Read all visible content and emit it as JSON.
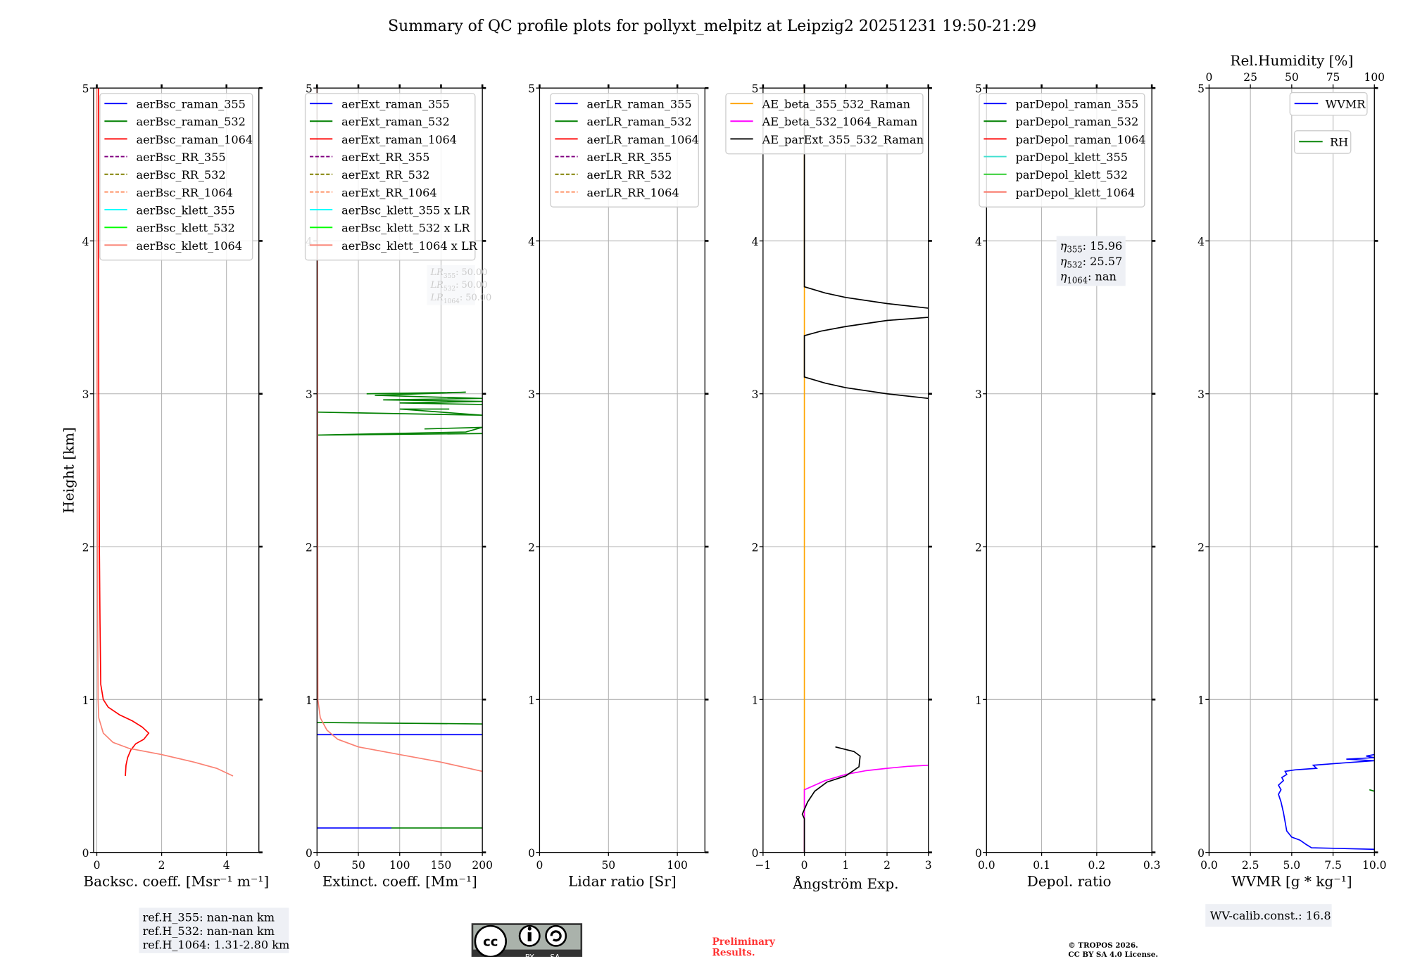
{
  "title": "Summary of QC profile plots for pollyxt_melpitz at Leipzig2 20251231 19:50-21:29",
  "ylabel": "Height [km]",
  "colors": {
    "grid": "#b0b0b0",
    "box": "#eef0f5",
    "preliminary": "#ff3333"
  },
  "chart_data": [
    {
      "type": "line",
      "xlabel": "Backsc. coeff. [Msr⁻¹ m⁻¹]",
      "xlim": [
        -0.1,
        5
      ],
      "ylim": [
        0,
        5
      ],
      "xticks": [
        0,
        2,
        4
      ],
      "xtick_labels": [
        "0",
        "2",
        "4"
      ],
      "yticks": [
        0,
        1,
        2,
        3,
        4,
        5
      ],
      "grid": true,
      "series": [
        {
          "name": "aerBsc_raman_355",
          "color": "#0000ff",
          "dash": false,
          "points": []
        },
        {
          "name": "aerBsc_raman_532",
          "color": "#008000",
          "dash": false,
          "points": []
        },
        {
          "name": "aerBsc_raman_1064",
          "color": "#ff0000",
          "dash": false,
          "points": [
            [
              0.05,
              5
            ],
            [
              0.06,
              3
            ],
            [
              0.08,
              2
            ],
            [
              0.1,
              1.5
            ],
            [
              0.12,
              1.1
            ],
            [
              0.2,
              1.0
            ],
            [
              0.35,
              0.95
            ],
            [
              0.7,
              0.9
            ],
            [
              1.1,
              0.86
            ],
            [
              1.4,
              0.82
            ],
            [
              1.6,
              0.78
            ],
            [
              1.45,
              0.74
            ],
            [
              1.2,
              0.71
            ],
            [
              1.05,
              0.67
            ],
            [
              0.95,
              0.62
            ],
            [
              0.9,
              0.57
            ],
            [
              0.88,
              0.5
            ]
          ]
        },
        {
          "name": "aerBsc_RR_355",
          "color": "#800080",
          "dash": true,
          "points": []
        },
        {
          "name": "aerBsc_RR_532",
          "color": "#808000",
          "dash": true,
          "points": []
        },
        {
          "name": "aerBsc_RR_1064",
          "color": "#ffa07a",
          "dash": true,
          "points": []
        },
        {
          "name": "aerBsc_klett_355",
          "color": "#00ffff",
          "dash": false,
          "points": []
        },
        {
          "name": "aerBsc_klett_532",
          "color": "#00ff00",
          "dash": false,
          "points": []
        },
        {
          "name": "aerBsc_klett_1064",
          "color": "#fa8072",
          "dash": false,
          "points": [
            [
              0.0,
              5
            ],
            [
              0.01,
              3
            ],
            [
              0.03,
              1.5
            ],
            [
              0.04,
              1.0
            ],
            [
              0.06,
              0.88
            ],
            [
              0.2,
              0.78
            ],
            [
              0.5,
              0.72
            ],
            [
              1.0,
              0.68
            ],
            [
              2.0,
              0.64
            ],
            [
              3.0,
              0.59
            ],
            [
              3.7,
              0.55
            ],
            [
              4.2,
              0.5
            ]
          ]
        }
      ],
      "annotation": [
        "ref.H_355: nan-nan km",
        "ref.H_532: nan-nan km",
        "ref.H_1064: 1.31-2.80 km"
      ]
    },
    {
      "type": "line",
      "xlabel": "Extinct. coeff. [Mm⁻¹]",
      "xlim": [
        0,
        200
      ],
      "ylim": [
        0,
        5
      ],
      "xticks": [
        0,
        50,
        100,
        150,
        200
      ],
      "xtick_labels": [
        "0",
        "50",
        "100",
        "150",
        "200"
      ],
      "yticks": [
        0,
        1,
        2,
        3,
        4,
        5
      ],
      "grid": true,
      "series": [
        {
          "name": "aerExt_raman_355",
          "color": "#0000ff",
          "dash": false,
          "points": [
            [
              0,
              0.77
            ],
            [
              200,
              0.77
            ],
            null,
            [
              0,
              0.16
            ],
            [
              90,
              0.16
            ]
          ]
        },
        {
          "name": "aerExt_raman_532",
          "color": "#008000",
          "dash": false,
          "points": [
            [
              0,
              0.85
            ],
            [
              200,
              0.84
            ],
            null,
            [
              90,
              0.16
            ],
            [
              200,
              0.16
            ],
            null,
            [
              60,
              3.0
            ],
            [
              180,
              3.01
            ],
            [
              70,
              2.99
            ],
            [
              200,
              2.97
            ],
            [
              80,
              2.96
            ],
            [
              200,
              2.95
            ],
            [
              100,
              2.94
            ],
            [
              200,
              2.93
            ],
            null,
            [
              0,
              2.88
            ],
            [
              200,
              2.86
            ],
            [
              100,
              2.9
            ],
            [
              160,
              2.9
            ],
            null,
            [
              130,
              2.77
            ],
            [
              200,
              2.78
            ],
            [
              180,
              2.75
            ],
            [
              0,
              2.73
            ],
            [
              200,
              2.74
            ]
          ]
        },
        {
          "name": "aerExt_raman_1064",
          "color": "#ff0000",
          "dash": false,
          "points": []
        },
        {
          "name": "aerExt_RR_355",
          "color": "#800080",
          "dash": true,
          "points": []
        },
        {
          "name": "aerExt_RR_532",
          "color": "#808000",
          "dash": true,
          "points": []
        },
        {
          "name": "aerExt_RR_1064",
          "color": "#ffa07a",
          "dash": true,
          "points": []
        },
        {
          "name": "aerBsc_klett_355 x LR",
          "color": "#00ffff",
          "dash": false,
          "points": []
        },
        {
          "name": "aerBsc_klett_532 x LR",
          "color": "#00ff00",
          "dash": false,
          "points": []
        },
        {
          "name": "aerBsc_klett_1064 x LR",
          "color": "#fa8072",
          "dash": false,
          "points": [
            [
              0,
              5
            ],
            [
              0.5,
              4
            ],
            [
              0.8,
              2
            ],
            [
              1,
              1.0
            ],
            [
              4,
              0.88
            ],
            [
              12,
              0.8
            ],
            [
              25,
              0.74
            ],
            [
              50,
              0.69
            ],
            [
              100,
              0.64
            ],
            [
              150,
              0.59
            ],
            [
              200,
              0.53
            ]
          ]
        }
      ],
      "annotation": [
        {
          "sym": "LR",
          "sub": "355",
          "val": ": 50.00"
        },
        {
          "sym": "LR",
          "sub": "532",
          "val": ": 50.00"
        },
        {
          "sym": "LR",
          "sub": "1064",
          "val": ": 50.00"
        }
      ]
    },
    {
      "type": "line",
      "xlabel": "Lidar ratio [Sr]",
      "xlim": [
        0,
        120
      ],
      "ylim": [
        0,
        5
      ],
      "xticks": [
        0,
        50,
        100
      ],
      "xtick_labels": [
        "0",
        "50",
        "100"
      ],
      "yticks": [
        0,
        1,
        2,
        3,
        4,
        5
      ],
      "grid": true,
      "series": [
        {
          "name": "aerLR_raman_355",
          "color": "#0000ff",
          "dash": false,
          "points": []
        },
        {
          "name": "aerLR_raman_532",
          "color": "#008000",
          "dash": false,
          "points": []
        },
        {
          "name": "aerLR_raman_1064",
          "color": "#ff0000",
          "dash": false,
          "points": []
        },
        {
          "name": "aerLR_RR_355",
          "color": "#800080",
          "dash": true,
          "points": []
        },
        {
          "name": "aerLR_RR_532",
          "color": "#808000",
          "dash": true,
          "points": []
        },
        {
          "name": "aerLR_RR_1064",
          "color": "#ffa07a",
          "dash": true,
          "points": []
        }
      ]
    },
    {
      "type": "line",
      "xlabel": "Ångström Exp.",
      "xlim": [
        -1,
        3
      ],
      "ylim": [
        0,
        5
      ],
      "xticks": [
        -1,
        0,
        1,
        2,
        3
      ],
      "xtick_labels": [
        "−1",
        "0",
        "1",
        "2",
        "3"
      ],
      "yticks": [
        0,
        1,
        2,
        3,
        4,
        5
      ],
      "grid": true,
      "series": [
        {
          "name": "AE_beta_355_532_Raman",
          "color": "#ffa500",
          "dash": false,
          "points": [
            [
              0,
              0
            ],
            [
              0,
              5
            ]
          ]
        },
        {
          "name": "AE_beta_532_1064_Raman",
          "color": "#ff00ff",
          "dash": false,
          "points": [
            [
              0,
              0
            ],
            [
              0,
              0.41
            ],
            [
              0.5,
              0.47
            ],
            [
              1,
              0.51
            ],
            [
              1.5,
              0.535
            ],
            [
              2,
              0.55
            ],
            [
              2.5,
              0.563
            ],
            [
              3,
              0.57
            ]
          ]
        },
        {
          "name": "AE_parExt_355_532_Raman",
          "color": "#000000",
          "dash": false,
          "points": [
            [
              0,
              5
            ],
            [
              0,
              3.7
            ],
            [
              0.5,
              3.66
            ],
            [
              1,
              3.63
            ],
            [
              2,
              3.59
            ],
            [
              3,
              3.56
            ],
            null,
            [
              3,
              3.5
            ],
            [
              2,
              3.48
            ],
            [
              1,
              3.44
            ],
            [
              0.4,
              3.41
            ],
            [
              0,
              3.38
            ],
            [
              0,
              3.11
            ],
            [
              0.5,
              3.07
            ],
            [
              1,
              3.04
            ],
            [
              2,
              3.0
            ],
            [
              3,
              2.97
            ],
            null,
            [
              0.75,
              0.69
            ],
            [
              1.2,
              0.66
            ],
            [
              1.35,
              0.63
            ],
            [
              1.32,
              0.56
            ],
            [
              1.0,
              0.5
            ],
            [
              0.55,
              0.46
            ],
            [
              0.25,
              0.4
            ],
            [
              0.08,
              0.33
            ],
            [
              -0.05,
              0.25
            ],
            [
              0,
              0.22
            ],
            [
              0,
              0
            ]
          ]
        }
      ]
    },
    {
      "type": "line",
      "xlabel": "Depol. ratio",
      "xlim": [
        0,
        0.3
      ],
      "ylim": [
        0,
        5
      ],
      "xticks": [
        0,
        0.1,
        0.2,
        0.3
      ],
      "xtick_labels": [
        "0.0",
        "0.1",
        "0.2",
        "0.3"
      ],
      "yticks": [
        0,
        1,
        2,
        3,
        4,
        5
      ],
      "grid": true,
      "series": [
        {
          "name": "parDepol_raman_355",
          "color": "#0000ff",
          "dash": false,
          "points": []
        },
        {
          "name": "parDepol_raman_532",
          "color": "#008000",
          "dash": false,
          "points": []
        },
        {
          "name": "parDepol_raman_1064",
          "color": "#ff0000",
          "dash": false,
          "points": []
        },
        {
          "name": "parDepol_klett_355",
          "color": "#40e0d0",
          "dash": false,
          "points": []
        },
        {
          "name": "parDepol_klett_532",
          "color": "#32cd32",
          "dash": false,
          "points": []
        },
        {
          "name": "parDepol_klett_1064",
          "color": "#fa8072",
          "dash": false,
          "points": []
        }
      ],
      "annotation": [
        {
          "sym": "η",
          "sub": "355",
          "val": ": 15.96"
        },
        {
          "sym": "η",
          "sub": "532",
          "val": ": 25.57"
        },
        {
          "sym": "η",
          "sub": "1064",
          "val": ": nan"
        }
      ]
    },
    {
      "type": "line",
      "xlabel": "WVMR [g * kg⁻¹]",
      "xlim": [
        0,
        10
      ],
      "ylim": [
        0,
        5
      ],
      "xticks": [
        0,
        2.5,
        5,
        7.5,
        10
      ],
      "xtick_labels": [
        "0.0",
        "2.5",
        "5.0",
        "7.5",
        "10.0"
      ],
      "yticks": [
        0,
        1,
        2,
        3,
        4,
        5
      ],
      "grid": true,
      "top_axis": {
        "label": "Rel.Humidity [%]",
        "xlim": [
          0,
          100
        ],
        "ticks": [
          0,
          25,
          50,
          75,
          100
        ],
        "tick_labels": [
          "0",
          "25",
          "50",
          "75",
          "100"
        ]
      },
      "series": [
        {
          "name": "WVMR",
          "color": "#0000ff",
          "dash": false,
          "points": [
            [
              10,
              0.02
            ],
            [
              6.2,
              0.03
            ],
            [
              5.9,
              0.05
            ],
            [
              5.5,
              0.08
            ],
            [
              5,
              0.1
            ],
            [
              4.7,
              0.14
            ],
            [
              4.6,
              0.2
            ],
            [
              4.5,
              0.26
            ],
            [
              4.35,
              0.33
            ],
            [
              4.2,
              0.38
            ],
            [
              4.35,
              0.41
            ],
            [
              4.2,
              0.44
            ],
            [
              4.5,
              0.47
            ],
            [
              4.4,
              0.49
            ],
            [
              4.7,
              0.51
            ],
            [
              4.6,
              0.53
            ],
            [
              5.2,
              0.54
            ],
            [
              6.5,
              0.55
            ],
            [
              6.3,
              0.57
            ],
            [
              7.5,
              0.58
            ],
            [
              10,
              0.6
            ],
            [
              8.3,
              0.61
            ],
            [
              10,
              0.62
            ],
            [
              9.5,
              0.63
            ],
            [
              10,
              0.64
            ]
          ]
        },
        {
          "name": "RH",
          "color": "#008000",
          "dash": false,
          "axis": "top",
          "points": [
            [
              97,
              0.41
            ],
            [
              100,
              0.4
            ]
          ]
        }
      ],
      "annotation": [
        "WV-calib.const.: 16.8"
      ]
    }
  ],
  "footer": {
    "preliminary": [
      "Preliminary",
      "Results."
    ],
    "copyright": [
      "© TROPOS 2026.",
      "CC BY SA 4.0 License."
    ],
    "cc_logo": [
      "cc",
      "BY",
      "SA"
    ]
  }
}
